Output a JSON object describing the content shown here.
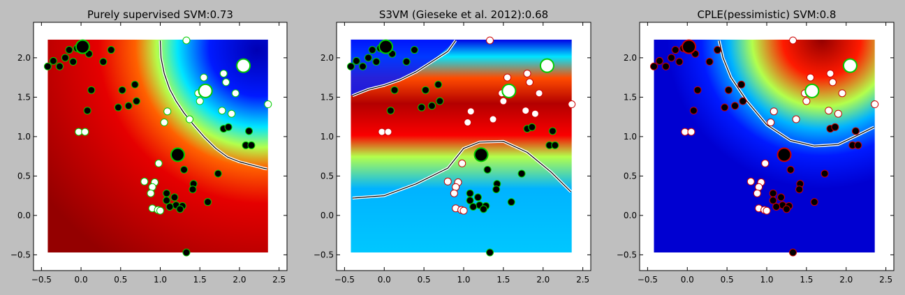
{
  "figure": {
    "background": "#bfbfbf"
  },
  "chart_data": [
    {
      "type": "scatter",
      "title": "Purely supervised SVM:0.73",
      "colormap": "jet",
      "heatmap_pattern": "red-low-left, blue-top-right",
      "decision_boundary": [
        [
          1.0,
          2.22
        ],
        [
          1.01,
          2.0
        ],
        [
          1.05,
          1.8
        ],
        [
          1.12,
          1.6
        ],
        [
          1.2,
          1.45
        ],
        [
          1.3,
          1.3
        ],
        [
          1.42,
          1.15
        ],
        [
          1.55,
          1.0
        ],
        [
          1.7,
          0.85
        ],
        [
          1.85,
          0.74
        ],
        [
          2.0,
          0.68
        ],
        [
          2.15,
          0.64
        ],
        [
          2.3,
          0.6
        ],
        [
          2.35,
          0.59
        ]
      ]
    },
    {
      "type": "scatter",
      "title": "S3VM (Gieseke et al. 2012):0.68",
      "colormap": "jet",
      "heatmap_pattern": "red-middle-band, blue-top-left and bottom",
      "decision_boundary": [
        [
          -0.4,
          1.52
        ],
        [
          -0.2,
          1.6
        ],
        [
          0,
          1.65
        ],
        [
          0.2,
          1.72
        ],
        [
          0.4,
          1.82
        ],
        [
          0.6,
          1.95
        ],
        [
          0.8,
          2.08
        ],
        [
          0.9,
          2.22
        ]
      ],
      "decision_boundary_2": [
        [
          -0.4,
          0.22
        ],
        [
          0,
          0.25
        ],
        [
          0.4,
          0.4
        ],
        [
          0.8,
          0.6
        ],
        [
          1.0,
          0.85
        ],
        [
          1.2,
          0.93
        ],
        [
          1.5,
          0.94
        ],
        [
          1.8,
          0.8
        ],
        [
          2.1,
          0.55
        ],
        [
          2.35,
          0.3
        ]
      ]
    },
    {
      "type": "scatter",
      "title": "CPLE(pessimistic) SVM:0.8",
      "colormap": "jet",
      "heatmap_pattern": "blue-background, red-top-right",
      "decision_boundary": [
        [
          0.4,
          2.22
        ],
        [
          0.45,
          2.0
        ],
        [
          0.55,
          1.75
        ],
        [
          0.75,
          1.45
        ],
        [
          1.0,
          1.15
        ],
        [
          1.3,
          0.95
        ],
        [
          1.6,
          0.88
        ],
        [
          1.9,
          0.9
        ],
        [
          2.15,
          1.02
        ],
        [
          2.35,
          1.12
        ]
      ]
    }
  ],
  "axes": {
    "xlim": [
      -0.6,
      2.6
    ],
    "ylim": [
      -0.7,
      2.45
    ],
    "xticks": [
      "−0.5",
      "0.0",
      "0.5",
      "1.0",
      "1.5",
      "2.0",
      "2.5"
    ],
    "yticks": [
      "−0.5",
      "0.0",
      "0.5",
      "1.0",
      "1.5",
      "2.0"
    ],
    "xtick_values": [
      -0.5,
      0.0,
      0.5,
      1.0,
      1.5,
      2.0,
      2.5
    ],
    "ytick_values": [
      -0.5,
      0.0,
      0.5,
      1.0,
      1.5,
      2.0
    ],
    "extent": {
      "x": [
        -0.42,
        2.36
      ],
      "y": [
        -0.47,
        2.23
      ]
    }
  },
  "points": {
    "class0": [
      [
        -0.42,
        1.89
      ],
      [
        -0.35,
        1.96
      ],
      [
        -0.27,
        1.89
      ],
      [
        -0.2,
        2.0
      ],
      [
        -0.15,
        2.1
      ],
      [
        -0.1,
        1.95
      ],
      [
        -0.05,
        2.12
      ],
      [
        0.1,
        2.05
      ],
      [
        0.28,
        1.95
      ],
      [
        0.38,
        2.1
      ],
      [
        0.13,
        1.59
      ],
      [
        0.52,
        1.59
      ],
      [
        0.68,
        1.66
      ],
      [
        0.6,
        1.39
      ],
      [
        0.47,
        1.37
      ],
      [
        0.7,
        1.45
      ],
      [
        0.08,
        1.33
      ],
      [
        1.08,
        0.28
      ],
      [
        1.18,
        0.23
      ],
      [
        1.08,
        0.19
      ],
      [
        1.2,
        0.13
      ],
      [
        1.28,
        0.12
      ],
      [
        1.25,
        0.08
      ],
      [
        1.12,
        0.11
      ],
      [
        1.3,
        0.58
      ],
      [
        1.42,
        0.4
      ],
      [
        1.41,
        0.33
      ],
      [
        1.6,
        0.17
      ],
      [
        1.73,
        0.53
      ],
      [
        1.8,
        1.1
      ],
      [
        1.86,
        1.12
      ],
      [
        2.12,
        1.07
      ],
      [
        2.08,
        0.89
      ],
      [
        2.15,
        0.89
      ],
      [
        1.33,
        -0.47
      ]
    ],
    "class1": [
      [
        1.33,
        2.22
      ],
      [
        1.55,
        1.75
      ],
      [
        1.48,
        1.55
      ],
      [
        1.5,
        1.45
      ],
      [
        1.8,
        1.8
      ],
      [
        1.83,
        1.69
      ],
      [
        1.95,
        1.55
      ],
      [
        1.78,
        1.33
      ],
      [
        1.9,
        1.29
      ],
      [
        2.36,
        1.41
      ],
      [
        1.37,
        1.22
      ],
      [
        1.09,
        1.32
      ],
      [
        1.05,
        1.18
      ],
      [
        -0.03,
        1.06
      ],
      [
        0.05,
        1.06
      ],
      [
        0.98,
        0.66
      ],
      [
        0.8,
        0.43
      ],
      [
        0.93,
        0.42
      ],
      [
        0.9,
        0.36
      ],
      [
        0.88,
        0.28
      ],
      [
        0.9,
        0.09
      ],
      [
        0.97,
        0.07
      ],
      [
        1.0,
        0.06
      ]
    ],
    "big_class0": [
      [
        0.02,
        2.14
      ],
      [
        1.22,
        0.77
      ]
    ],
    "big_class1": [
      [
        1.57,
        1.58
      ],
      [
        2.05,
        1.9
      ]
    ]
  },
  "colors": {
    "class0_fill": "#000000",
    "class1_fill": "#ffffff",
    "panel1_edge_class0": "#00cc00",
    "panel1_edge_class1": "#00cc00",
    "panel2_edge_class0": "#00cc00",
    "panel2_edge_class1": "#cc0000",
    "panel3_edge_class0": "#cc0000",
    "panel3_edge_class1": "#cc0000",
    "big_edge": "#00cc00",
    "boundary_outer": "#ffffff",
    "boundary_inner": "#000000"
  }
}
